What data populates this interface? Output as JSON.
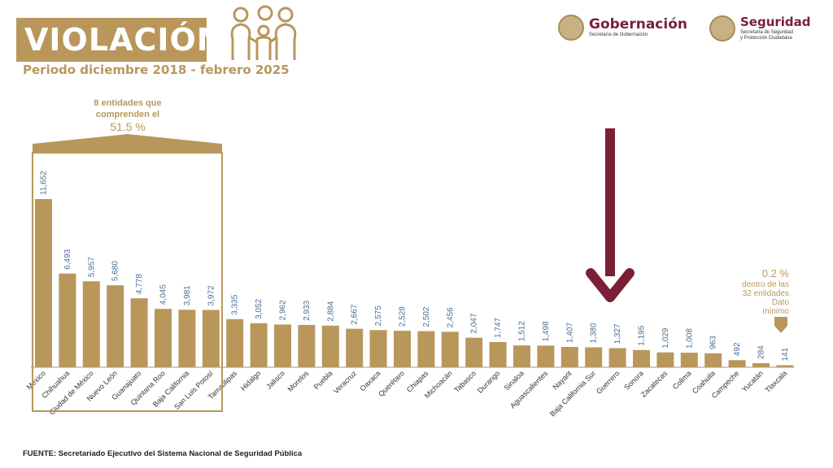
{
  "header": {
    "title": "VIOLACIÓN",
    "subtitle": "Periodo diciembre 2018 - febrero 2025"
  },
  "logos": [
    {
      "main": "Gobernación",
      "sub": "Secretaría de Gobernación"
    },
    {
      "main": "Seguridad",
      "sub1": "Secretaría de Seguridad",
      "sub2": "y Protección Ciudadana"
    }
  ],
  "annotations": {
    "group_line1": "8 entidades que",
    "group_line2": "comprenden el",
    "group_pct": "51.5 %",
    "min_pct": "0.2 %",
    "min_line1": "dentro de las",
    "min_line2": "32 entidades",
    "min_line3": "Dato",
    "min_line4": "mínimo"
  },
  "source": "FUENTE: Secretariado Ejecutivo del Sistema Nacional de Seguridad Pública",
  "colors": {
    "bar": "#b9975b",
    "accent": "#7a1f36",
    "value_label": "#4a6f96"
  },
  "chart_data": {
    "type": "bar",
    "categories": [
      "México",
      "Chihuahua",
      "Ciudad de México",
      "Nuevo León",
      "Guanajuato",
      "Quintana Roo",
      "Baja California",
      "San Luis Potosí",
      "Tamaulipas",
      "Hidalgo",
      "Jalisco",
      "Morelos",
      "Puebla",
      "Veracruz",
      "Oaxaca",
      "Querétaro",
      "Chiapas",
      "Michoacán",
      "Tabasco",
      "Durango",
      "Sinaloa",
      "Aguascalientes",
      "Nayarit",
      "Baja California Sur",
      "Guerrero",
      "Sonora",
      "Zacatecas",
      "Colima",
      "Coahuila",
      "Campeche",
      "Yucatán",
      "Tlaxcala"
    ],
    "values": [
      11652,
      6493,
      5957,
      5680,
      4778,
      4045,
      3981,
      3972,
      3335,
      3052,
      2962,
      2933,
      2884,
      2667,
      2575,
      2528,
      2502,
      2456,
      2047,
      1747,
      1512,
      1498,
      1407,
      1380,
      1327,
      1195,
      1029,
      1008,
      963,
      492,
      284,
      141
    ],
    "labels": [
      "11,652",
      "6,493",
      "5,957",
      "5,680",
      "4,778",
      "4,045",
      "3,981",
      "3,972",
      "3,335",
      "3,052",
      "2,962",
      "2,933",
      "2,884",
      "2,667",
      "2,575",
      "2,528",
      "2,502",
      "2,456",
      "2,047",
      "1,747",
      "1,512",
      "1,498",
      "1,407",
      "1,380",
      "1,327",
      "1,195",
      "1,029",
      "1,008",
      "963",
      "492",
      "284",
      "141"
    ],
    "highlight_category": "Guerrero",
    "highlight_group_size": 8,
    "ylim": [
      0,
      11652
    ],
    "grid": false
  }
}
